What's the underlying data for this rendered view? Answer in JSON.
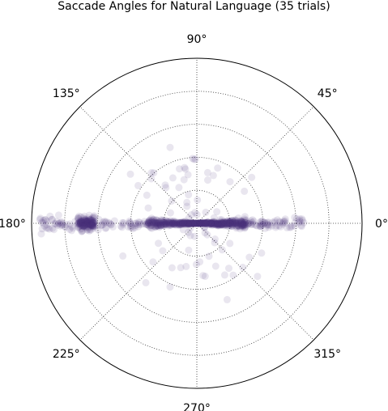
{
  "chart_data": {
    "type": "scatter",
    "projection": "polar",
    "title": "Saccade Angles for Natural Language (35 trials)",
    "angle_tick_labels": [
      "0°",
      "45°",
      "90°",
      "135°",
      "180°",
      "225°",
      "270°",
      "315°"
    ],
    "angle_ticks_deg": [
      0,
      45,
      90,
      135,
      180,
      225,
      270,
      315
    ],
    "radial_gridlines": 5,
    "radial_tick_labels_shown": false,
    "grid": true,
    "grid_style": "dotted",
    "marker_color": "#4b2f7a",
    "marker_alpha": 0.12,
    "clusters": [
      {
        "angle_center_deg": 0,
        "angle_spread_deg": 6,
        "radius_min": 0.0,
        "radius_max": 0.3,
        "count": 320
      },
      {
        "angle_center_deg": 180,
        "angle_spread_deg": 6,
        "radius_min": 0.0,
        "radius_max": 0.3,
        "count": 260
      },
      {
        "angle_center_deg": 180,
        "angle_spread_deg": 3,
        "radius_min": 0.62,
        "radius_max": 0.72,
        "count": 140
      },
      {
        "angle_center_deg": 180,
        "angle_spread_deg": 4,
        "radius_min": 0.3,
        "radius_max": 0.95,
        "count": 110
      },
      {
        "angle_center_deg": 0,
        "angle_spread_deg": 4,
        "radius_min": 0.3,
        "radius_max": 0.65,
        "count": 70
      },
      {
        "angle_center_deg": 90,
        "angle_spread_deg": 90,
        "radius_min": 0.05,
        "radius_max": 0.5,
        "count": 40
      },
      {
        "angle_center_deg": 270,
        "angle_spread_deg": 90,
        "radius_min": 0.05,
        "radius_max": 0.5,
        "count": 40
      }
    ]
  }
}
